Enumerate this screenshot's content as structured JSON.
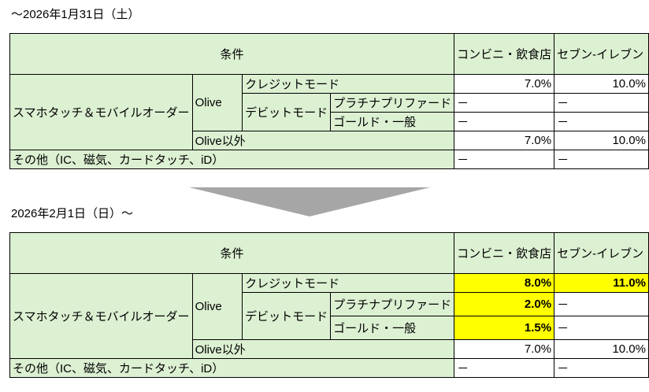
{
  "colors": {
    "header_bg": "#dcf0d2",
    "highlight": "#ffff00",
    "arrow": "#a6a6a6"
  },
  "before": {
    "title": "～2026年1月31日（土）",
    "header": {
      "condition": "条件",
      "col1": "コンビニ・飲食店",
      "col2": "セブン‐イレブン"
    },
    "labels": {
      "smartphone": "スマホタッチ＆モバイルオーダー",
      "olive": "Olive",
      "credit": "クレジットモード",
      "debit": "デビットモード",
      "platinum": "プラチナプリファード",
      "gold": "ゴールド・一般",
      "non_olive": "Olive以外",
      "other": "その他（IC、磁気、カードタッチ、iD）"
    },
    "values": {
      "credit": [
        "7.0%",
        "10.0%"
      ],
      "platinum": [
        "－",
        "－"
      ],
      "gold": [
        "－",
        "－"
      ],
      "non_olive": [
        "7.0%",
        "10.0%"
      ],
      "other": [
        "－",
        "－"
      ]
    }
  },
  "after": {
    "title": "2026年2月1日（日）～",
    "header": {
      "condition": "条件",
      "col1": "コンビニ・飲食店",
      "col2": "セブン‐イレブン"
    },
    "labels": {
      "smartphone": "スマホタッチ＆モバイルオーダー",
      "olive": "Olive",
      "credit": "クレジットモード",
      "debit": "デビットモード",
      "platinum": "プラチナプリファード",
      "gold": "ゴールド・一般",
      "non_olive": "Olive以外",
      "other": "その他（IC、磁気、カードタッチ、iD）"
    },
    "values": {
      "credit": [
        "8.0%",
        "11.0%"
      ],
      "platinum": [
        "2.0%",
        "－"
      ],
      "gold": [
        "1.5%",
        "－"
      ],
      "non_olive": [
        "7.0%",
        "10.0%"
      ],
      "other": [
        "－",
        "－"
      ]
    }
  }
}
